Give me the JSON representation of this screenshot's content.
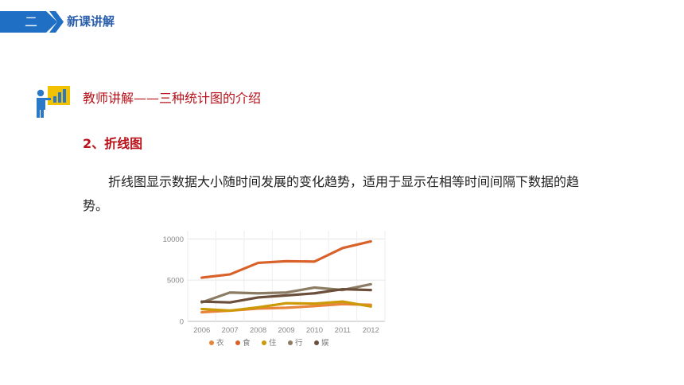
{
  "header": {
    "section_number": "二",
    "section_title": "新课讲解",
    "accent_color": "#1f6fc4"
  },
  "teacher_icon": "teacher-pointing-board-icon",
  "subheading": "教师讲解——三种统计图的介绍",
  "point": {
    "title": "2、折线图",
    "description": "折线图显示数据大小随时间发展的变化趋势，适用于显示在相等时间间隔下数据的趋势。"
  },
  "chart_data": {
    "type": "line",
    "x": [
      "2006",
      "2007",
      "2008",
      "2009",
      "2010",
      "2011",
      "2012"
    ],
    "yticks": [
      "0",
      "5000",
      "10000"
    ],
    "ylim": [
      0,
      11000
    ],
    "grid": true,
    "legend_position": "bottom",
    "series": [
      {
        "name": "衣",
        "color": "#e8853a",
        "values": [
          1100,
          1300,
          1550,
          1650,
          1850,
          2100,
          2000
        ]
      },
      {
        "name": "食",
        "color": "#d9622b",
        "values": [
          5300,
          5700,
          7100,
          7300,
          7250,
          8900,
          9700
        ]
      },
      {
        "name": "住",
        "color": "#cc9a06",
        "values": [
          1500,
          1300,
          1700,
          2200,
          2150,
          2400,
          1800
        ]
      },
      {
        "name": "行",
        "color": "#8c7c63",
        "values": [
          2300,
          3500,
          3400,
          3500,
          4100,
          3800,
          4500
        ]
      },
      {
        "name": "娱",
        "color": "#6b4f3a",
        "values": [
          2400,
          2300,
          2900,
          3150,
          3400,
          3900,
          3800
        ]
      }
    ]
  }
}
